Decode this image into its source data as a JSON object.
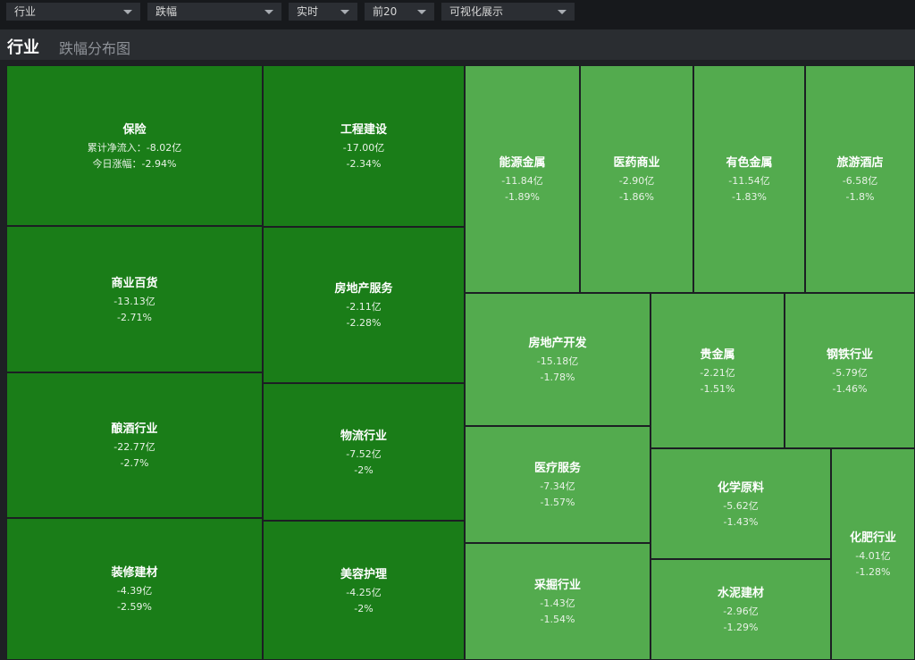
{
  "toolbar": {
    "selects": [
      {
        "value": "行业"
      },
      {
        "value": "跌幅"
      },
      {
        "value": "实时"
      },
      {
        "value": "前20"
      },
      {
        "value": "可视化展示"
      }
    ]
  },
  "header": {
    "tab_main": "行业",
    "tab_sub": "跌幅分布图"
  },
  "colors": {
    "dark_green": "#1a7d18",
    "light_green": "#53ab4e",
    "background": "#1e2024"
  },
  "treemap": {
    "cells": [
      {
        "name": "保险",
        "flow": "累计净流入：-8.02亿",
        "change": "今日涨幅：-2.94%"
      },
      {
        "name": "商业百货",
        "flow": "-13.13亿",
        "change": "-2.71%"
      },
      {
        "name": "酿酒行业",
        "flow": "-22.77亿",
        "change": "-2.7%"
      },
      {
        "name": "装修建材",
        "flow": "-4.39亿",
        "change": "-2.59%"
      },
      {
        "name": "工程建设",
        "flow": "-17.00亿",
        "change": "-2.34%"
      },
      {
        "name": "房地产服务",
        "flow": "-2.11亿",
        "change": "-2.28%"
      },
      {
        "name": "物流行业",
        "flow": "-7.52亿",
        "change": "-2%"
      },
      {
        "name": "美容护理",
        "flow": "-4.25亿",
        "change": "-2%"
      },
      {
        "name": "能源金属",
        "flow": "-11.84亿",
        "change": "-1.89%"
      },
      {
        "name": "医药商业",
        "flow": "-2.90亿",
        "change": "-1.86%"
      },
      {
        "name": "有色金属",
        "flow": "-11.54亿",
        "change": "-1.83%"
      },
      {
        "name": "旅游酒店",
        "flow": "-6.58亿",
        "change": "-1.8%"
      },
      {
        "name": "房地产开发",
        "flow": "-15.18亿",
        "change": "-1.78%"
      },
      {
        "name": "医疗服务",
        "flow": "-7.34亿",
        "change": "-1.57%"
      },
      {
        "name": "采掘行业",
        "flow": "-1.43亿",
        "change": "-1.54%"
      },
      {
        "name": "贵金属",
        "flow": "-2.21亿",
        "change": "-1.51%"
      },
      {
        "name": "钢铁行业",
        "flow": "-5.79亿",
        "change": "-1.46%"
      },
      {
        "name": "化学原料",
        "flow": "-5.62亿",
        "change": "-1.43%"
      },
      {
        "name": "水泥建材",
        "flow": "-2.96亿",
        "change": "-1.29%"
      },
      {
        "name": "化肥行业",
        "flow": "-4.01亿",
        "change": "-1.28%"
      }
    ]
  }
}
